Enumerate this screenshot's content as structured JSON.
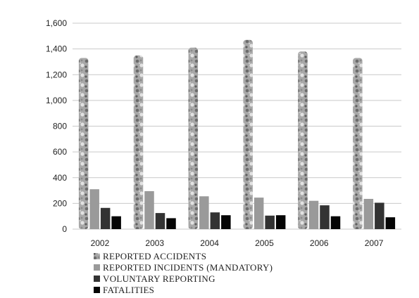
{
  "chart_data": {
    "type": "bar",
    "title": "",
    "xlabel": "",
    "ylabel": "",
    "categories": [
      "2002",
      "2003",
      "2004",
      "2005",
      "2006",
      "2007"
    ],
    "ylim": [
      0,
      1600
    ],
    "yticks": [
      0,
      200,
      400,
      600,
      800,
      1000,
      1200,
      1400,
      1600
    ],
    "ytick_labels": [
      "0",
      "200",
      "400",
      "600",
      "800",
      "1,000",
      "1,200",
      "1,400",
      "1,600"
    ],
    "grid": "horizontal",
    "legend_position": "bottom",
    "series": [
      {
        "name": "REPORTED ACCIDENTS",
        "values": [
          1330,
          1350,
          1410,
          1470,
          1380,
          1330
        ],
        "color": "#a0a0a0",
        "pattern": "marble"
      },
      {
        "name": "REPORTED INCIDENTS (MANDATORY)",
        "values": [
          310,
          295,
          255,
          245,
          220,
          235
        ],
        "color": "#9a9a9a"
      },
      {
        "name": "VOLUNTARY REPORTING",
        "values": [
          165,
          125,
          130,
          105,
          185,
          205
        ],
        "color": "#333333"
      },
      {
        "name": "FATALITIES",
        "values": [
          100,
          85,
          108,
          108,
          100,
          92
        ],
        "color": "#050505"
      }
    ]
  }
}
